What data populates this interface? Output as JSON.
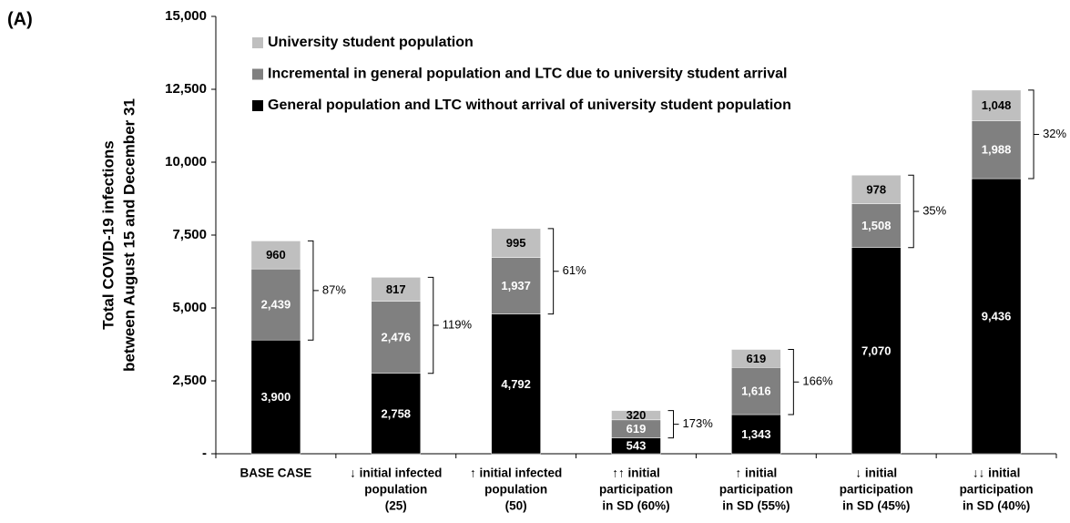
{
  "chart_data": {
    "type": "stacked_bar",
    "panel_label": "(A)",
    "ylabel": [
      "Total COVID-19 infections",
      "between August 15 and December 31"
    ],
    "categories": [
      [
        "BASE CASE"
      ],
      [
        "↓ initial infected",
        "population",
        "(25)"
      ],
      [
        "↑ initial infected",
        "population",
        "(50)"
      ],
      [
        "↑↑ initial",
        "participation",
        "in SD (60%)"
      ],
      [
        "↑ initial",
        "participation",
        "in SD (55%)"
      ],
      [
        "↓ initial",
        "participation",
        "in SD (45%)"
      ],
      [
        "↓↓ initial",
        "participation",
        "in SD  (40%)"
      ]
    ],
    "series": [
      {
        "name": "General population and LTC without arrival of university student population",
        "color": "#000000",
        "label_color": "#ffffff",
        "values": [
          3900,
          2758,
          4792,
          543,
          1343,
          7070,
          9436
        ],
        "value_labels": [
          "3,900",
          "2,758",
          "4,792",
          "543",
          "1,343",
          "7,070",
          "9,436"
        ]
      },
      {
        "name": "Incremental in general population and LTC due to university student arrival",
        "color": "#808080",
        "label_color": "#ffffff",
        "values": [
          2439,
          2476,
          1937,
          619,
          1616,
          1508,
          1988
        ],
        "value_labels": [
          "2,439",
          "2,476",
          "1,937",
          "619",
          "1,616",
          "1,508",
          "1,988"
        ]
      },
      {
        "name": "University student population",
        "color": "#bfbfbf",
        "label_color": "#000000",
        "values": [
          960,
          817,
          995,
          320,
          619,
          978,
          1048
        ],
        "value_labels": [
          "960",
          "817",
          "995",
          "320",
          "619",
          "978",
          "1,048"
        ]
      }
    ],
    "brackets": {
      "values": [
        87,
        119,
        61,
        173,
        166,
        35,
        32
      ],
      "value_labels": [
        "87%",
        "119%",
        "61%",
        "173%",
        "166%",
        "35%",
        "32%"
      ]
    },
    "ylim": [
      0,
      15000
    ],
    "yticks": [
      {
        "value": 0,
        "label": "-"
      },
      {
        "value": 2500,
        "label": "2,500"
      },
      {
        "value": 5000,
        "label": "5,000"
      },
      {
        "value": 7500,
        "label": "7,500"
      },
      {
        "value": 10000,
        "label": "10,000"
      },
      {
        "value": 12500,
        "label": "12,500"
      },
      {
        "value": 15000,
        "label": "15,000"
      }
    ]
  }
}
